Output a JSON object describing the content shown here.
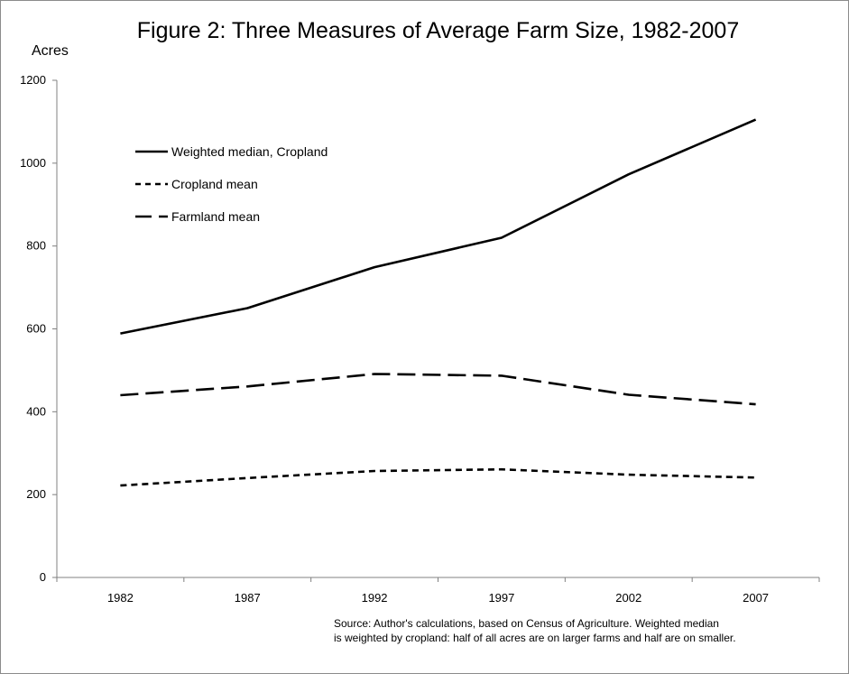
{
  "chart_data": {
    "type": "line",
    "title": "Figure 2: Three Measures of Average Farm Size, 1982-2007",
    "ylabel": "Acres",
    "xlabel": "",
    "ylim": [
      0,
      1200
    ],
    "yticks": [
      "0",
      "200",
      "400",
      "600",
      "800",
      "1000",
      "1200"
    ],
    "categories": [
      "1982",
      "1987",
      "1992",
      "1997",
      "2002",
      "2007"
    ],
    "grid": false,
    "legend_position": "top-left",
    "series": [
      {
        "name": "Weighted median, Cropland",
        "style": "solid",
        "values": [
          589,
          650,
          749,
          820,
          973,
          1105
        ]
      },
      {
        "name": "Cropland mean",
        "style": "short-dash",
        "values": [
          222,
          240,
          257,
          261,
          248,
          241
        ]
      },
      {
        "name": "Farmland mean",
        "style": "long-dash",
        "values": [
          440,
          461,
          491,
          487,
          441,
          418
        ]
      }
    ],
    "source_lines": [
      "Source: Author's calculations, based on Census of Agriculture. Weighted median",
      "is weighted by cropland: half of all acres are on larger farms and half are on smaller."
    ],
    "colors": {
      "line": "#000000",
      "axis": "#808080"
    }
  }
}
